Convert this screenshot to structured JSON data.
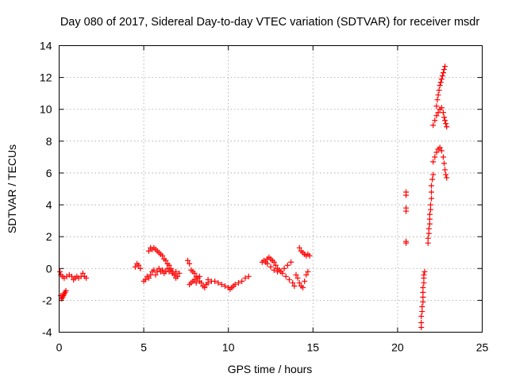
{
  "chart_data": {
    "type": "scatter",
    "title": "Day 080 of 2017, Sidereal Day-to-day VTEC variation (SDTVAR) for receiver msdr",
    "xlabel": "GPS time / hours",
    "ylabel": "SDTVAR / TECUs",
    "xlim": [
      0,
      25
    ],
    "ylim": [
      -4,
      14
    ],
    "xticks": [
      "0",
      "5",
      "10",
      "15",
      "20",
      "25"
    ],
    "yticks": [
      "-4",
      "-2",
      "0",
      "2",
      "4",
      "6",
      "8",
      "10",
      "12",
      "14"
    ],
    "grid": true,
    "marker": "plus",
    "series_color": "#ff0000",
    "series": [
      {
        "name": "SDTVAR",
        "points": [
          [
            0.05,
            -0.2
          ],
          [
            0.1,
            -0.4
          ],
          [
            0.1,
            -1.7
          ],
          [
            0.15,
            -1.9
          ],
          [
            0.2,
            -1.8
          ],
          [
            0.25,
            -1.7
          ],
          [
            0.3,
            -1.6
          ],
          [
            0.35,
            -1.5
          ],
          [
            0.4,
            -1.4
          ],
          [
            0.2,
            -0.5
          ],
          [
            0.3,
            -0.6
          ],
          [
            0.45,
            -0.5
          ],
          [
            0.6,
            -0.4
          ],
          [
            0.75,
            -0.5
          ],
          [
            0.85,
            -0.7
          ],
          [
            0.95,
            -0.6
          ],
          [
            1.05,
            -0.5
          ],
          [
            1.15,
            -0.6
          ],
          [
            1.3,
            -0.5
          ],
          [
            1.4,
            -0.3
          ],
          [
            1.5,
            -0.5
          ],
          [
            1.6,
            -0.6
          ],
          [
            4.5,
            0.1
          ],
          [
            4.6,
            0.3
          ],
          [
            4.7,
            0.2
          ],
          [
            4.8,
            0.0
          ],
          [
            5.0,
            -0.8
          ],
          [
            5.1,
            -0.7
          ],
          [
            5.2,
            -0.5
          ],
          [
            5.3,
            -0.6
          ],
          [
            5.4,
            -0.4
          ],
          [
            5.5,
            -0.2
          ],
          [
            5.6,
            -0.1
          ],
          [
            5.7,
            -0.4
          ],
          [
            5.8,
            -0.2
          ],
          [
            5.9,
            0.0
          ],
          [
            6.0,
            -0.2
          ],
          [
            6.1,
            -0.1
          ],
          [
            6.2,
            -0.3
          ],
          [
            6.3,
            -0.2
          ],
          [
            6.4,
            0.0
          ],
          [
            6.5,
            -0.2
          ],
          [
            6.6,
            -0.1
          ],
          [
            6.7,
            -0.3
          ],
          [
            6.8,
            -0.4
          ],
          [
            6.9,
            -0.2
          ],
          [
            7.0,
            -0.5
          ],
          [
            7.1,
            -0.3
          ],
          [
            5.3,
            1.1
          ],
          [
            5.4,
            1.3
          ],
          [
            5.5,
            1.2
          ],
          [
            5.6,
            1.3
          ],
          [
            5.7,
            1.2
          ],
          [
            5.8,
            1.1
          ],
          [
            5.9,
            1.0
          ],
          [
            6.0,
            0.9
          ],
          [
            6.1,
            0.8
          ],
          [
            6.2,
            0.6
          ],
          [
            6.3,
            0.5
          ],
          [
            6.4,
            0.3
          ],
          [
            6.5,
            0.2
          ],
          [
            6.6,
            0.0
          ],
          [
            6.7,
            -0.2
          ],
          [
            6.8,
            -0.4
          ],
          [
            6.9,
            -0.6
          ],
          [
            7.6,
            0.5
          ],
          [
            7.7,
            0.3
          ],
          [
            7.7,
            -1.0
          ],
          [
            7.8,
            -0.9
          ],
          [
            7.9,
            -0.8
          ],
          [
            8.0,
            -0.7
          ],
          [
            8.1,
            -0.9
          ],
          [
            8.2,
            -0.6
          ],
          [
            8.3,
            -0.8
          ],
          [
            8.4,
            -0.9
          ],
          [
            8.5,
            -1.1
          ],
          [
            8.6,
            -1.2
          ],
          [
            8.7,
            -1.0
          ],
          [
            8.8,
            -0.9
          ],
          [
            7.8,
            -0.1
          ],
          [
            7.9,
            -0.2
          ],
          [
            8.0,
            -0.3
          ],
          [
            8.1,
            -0.5
          ],
          [
            8.2,
            -0.6
          ],
          [
            8.3,
            -0.5
          ],
          [
            8.8,
            -0.7
          ],
          [
            9.0,
            -0.8
          ],
          [
            9.2,
            -0.8
          ],
          [
            9.4,
            -0.9
          ],
          [
            9.6,
            -1.0
          ],
          [
            9.8,
            -1.1
          ],
          [
            10.0,
            -1.2
          ],
          [
            10.1,
            -1.3
          ],
          [
            10.2,
            -1.2
          ],
          [
            10.3,
            -1.1
          ],
          [
            10.4,
            -1.0
          ],
          [
            10.6,
            -0.9
          ],
          [
            10.8,
            -0.8
          ],
          [
            11.0,
            -0.6
          ],
          [
            11.2,
            -0.5
          ],
          [
            12.0,
            0.4
          ],
          [
            12.1,
            0.5
          ],
          [
            12.2,
            0.4
          ],
          [
            12.3,
            0.6
          ],
          [
            12.4,
            0.7
          ],
          [
            12.5,
            0.6
          ],
          [
            12.6,
            0.5
          ],
          [
            12.7,
            0.4
          ],
          [
            12.8,
            0.2
          ],
          [
            12.9,
            0.0
          ],
          [
            13.0,
            -0.1
          ],
          [
            13.2,
            -0.3
          ],
          [
            13.4,
            -0.5
          ],
          [
            13.6,
            -0.7
          ],
          [
            13.8,
            -0.9
          ],
          [
            13.9,
            -1.1
          ],
          [
            12.3,
            0.3
          ],
          [
            12.5,
            0.1
          ],
          [
            12.7,
            -0.1
          ],
          [
            12.9,
            -0.2
          ],
          [
            13.1,
            -0.2
          ],
          [
            13.3,
            0.0
          ],
          [
            13.5,
            0.2
          ],
          [
            13.7,
            0.4
          ],
          [
            14.0,
            -0.4
          ],
          [
            14.1,
            -0.6
          ],
          [
            14.2,
            -0.9
          ],
          [
            14.3,
            -1.1
          ],
          [
            14.4,
            -1.2
          ],
          [
            14.5,
            -0.8
          ],
          [
            14.6,
            -0.4
          ],
          [
            14.7,
            -0.2
          ],
          [
            14.2,
            1.3
          ],
          [
            14.3,
            1.1
          ],
          [
            14.4,
            1.0
          ],
          [
            14.5,
            0.9
          ],
          [
            14.6,
            0.8
          ],
          [
            14.7,
            0.9
          ],
          [
            14.8,
            0.8
          ],
          [
            20.5,
            4.8
          ],
          [
            20.5,
            4.6
          ],
          [
            20.5,
            3.8
          ],
          [
            20.5,
            3.6
          ],
          [
            20.5,
            1.7
          ],
          [
            20.5,
            1.6
          ],
          [
            21.4,
            -3.7
          ],
          [
            21.4,
            -3.4
          ],
          [
            21.4,
            -3.0
          ],
          [
            21.45,
            -2.7
          ],
          [
            21.45,
            -2.4
          ],
          [
            21.5,
            -2.1
          ],
          [
            21.5,
            -1.8
          ],
          [
            21.5,
            -1.5
          ],
          [
            21.5,
            -1.2
          ],
          [
            21.55,
            -0.9
          ],
          [
            21.55,
            -0.6
          ],
          [
            21.55,
            -0.4
          ],
          [
            21.6,
            -0.2
          ],
          [
            21.8,
            1.6
          ],
          [
            21.8,
            1.9
          ],
          [
            21.85,
            2.2
          ],
          [
            21.85,
            2.5
          ],
          [
            21.9,
            2.8
          ],
          [
            21.9,
            3.1
          ],
          [
            21.9,
            3.4
          ],
          [
            21.95,
            3.7
          ],
          [
            21.95,
            4.0
          ],
          [
            22.0,
            4.4
          ],
          [
            22.0,
            4.8
          ],
          [
            22.0,
            5.2
          ],
          [
            22.05,
            5.6
          ],
          [
            22.1,
            5.9
          ],
          [
            22.1,
            6.7
          ],
          [
            22.2,
            7.0
          ],
          [
            22.3,
            7.3
          ],
          [
            22.4,
            7.5
          ],
          [
            22.5,
            7.6
          ],
          [
            22.6,
            7.4
          ],
          [
            22.7,
            7.0
          ],
          [
            22.75,
            6.6
          ],
          [
            22.8,
            6.2
          ],
          [
            22.85,
            5.9
          ],
          [
            22.9,
            5.7
          ],
          [
            22.1,
            9.0
          ],
          [
            22.2,
            9.3
          ],
          [
            22.3,
            9.6
          ],
          [
            22.4,
            9.8
          ],
          [
            22.5,
            10.0
          ],
          [
            22.6,
            10.1
          ],
          [
            22.7,
            9.8
          ],
          [
            22.75,
            9.5
          ],
          [
            22.8,
            9.3
          ],
          [
            22.85,
            9.1
          ],
          [
            22.9,
            8.9
          ],
          [
            22.3,
            10.2
          ],
          [
            22.35,
            10.6
          ],
          [
            22.4,
            10.9
          ],
          [
            22.45,
            11.2
          ],
          [
            22.5,
            11.5
          ],
          [
            22.55,
            11.7
          ],
          [
            22.6,
            11.9
          ],
          [
            22.65,
            12.1
          ],
          [
            22.7,
            12.3
          ],
          [
            22.75,
            12.5
          ],
          [
            22.8,
            12.7
          ]
        ]
      }
    ]
  }
}
